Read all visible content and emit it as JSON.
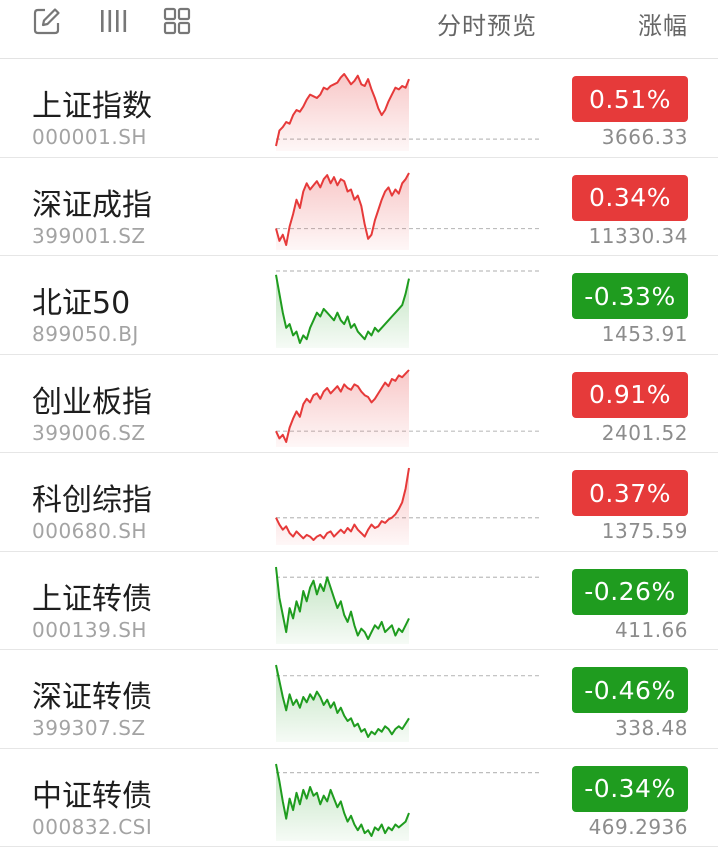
{
  "header": {
    "edit_icon": "edit-icon",
    "columns_icon": "column-view-icon",
    "grid_icon": "grid-view-icon",
    "preview_label": "分时预览",
    "change_label": "涨幅"
  },
  "colors": {
    "up": "#e63a3a",
    "down": "#1f9c1f",
    "baseline": "#bdbdbd"
  },
  "rows": [
    {
      "name": "上证指数",
      "code": "000001.SH",
      "change": "0.51%",
      "price": "3666.33",
      "trend": "up",
      "intraday": [
        -0.2,
        0.25,
        0.35,
        0.5,
        0.45,
        0.7,
        0.85,
        0.8,
        0.95,
        1.15,
        1.3,
        1.25,
        1.2,
        1.3,
        1.5,
        1.45,
        1.55,
        1.6,
        1.65,
        1.8,
        1.9,
        1.75,
        1.6,
        1.7,
        1.85,
        1.6,
        1.55,
        1.75,
        1.45,
        1.2,
        0.9,
        0.7,
        0.85,
        1.1,
        1.3,
        1.5,
        1.45,
        1.55,
        1.5,
        1.75
      ]
    },
    {
      "name": "深证成指",
      "code": "399001.SZ",
      "change": "0.34%",
      "price": "11330.34",
      "trend": "up",
      "intraday": [
        0.0,
        -0.3,
        -0.15,
        -0.4,
        0.05,
        0.35,
        0.7,
        0.5,
        0.9,
        1.1,
        0.95,
        1.05,
        1.15,
        1.0,
        1.2,
        1.3,
        1.1,
        1.25,
        1.05,
        1.2,
        1.15,
        0.9,
        0.95,
        0.7,
        0.8,
        0.55,
        0.1,
        -0.25,
        -0.15,
        0.2,
        0.45,
        0.7,
        0.9,
        1.0,
        0.8,
        0.95,
        0.85,
        1.1,
        1.2,
        1.35
      ]
    },
    {
      "name": "北证50",
      "code": "899050.BJ",
      "change": "-0.33%",
      "price": "1453.91",
      "trend": "down",
      "intraday": [
        -0.05,
        -0.3,
        -0.55,
        -0.75,
        -0.7,
        -0.85,
        -0.8,
        -0.95,
        -0.85,
        -0.9,
        -0.75,
        -0.65,
        -0.55,
        -0.6,
        -0.5,
        -0.55,
        -0.6,
        -0.65,
        -0.55,
        -0.65,
        -0.7,
        -0.6,
        -0.75,
        -0.7,
        -0.8,
        -0.85,
        -0.9,
        -0.8,
        -0.85,
        -0.75,
        -0.8,
        -0.75,
        -0.7,
        -0.65,
        -0.6,
        -0.55,
        -0.5,
        -0.45,
        -0.3,
        -0.1
      ]
    },
    {
      "name": "创业板指",
      "code": "399006.SZ",
      "change": "0.91%",
      "price": "2401.52",
      "trend": "up",
      "intraday": [
        0.0,
        -0.2,
        -0.1,
        -0.3,
        0.1,
        0.35,
        0.55,
        0.4,
        0.75,
        0.9,
        0.8,
        1.0,
        1.05,
        0.9,
        1.1,
        1.2,
        1.05,
        1.15,
        1.25,
        1.1,
        1.3,
        1.2,
        1.15,
        1.3,
        1.25,
        1.1,
        1.0,
        0.95,
        0.8,
        0.9,
        1.05,
        1.2,
        1.35,
        1.25,
        1.45,
        1.4,
        1.55,
        1.5,
        1.6,
        1.7
      ]
    },
    {
      "name": "科创综指",
      "code": "000680.SH",
      "change": "0.37%",
      "price": "1375.59",
      "trend": "up",
      "intraday": [
        0.0,
        -0.2,
        -0.35,
        -0.25,
        -0.45,
        -0.55,
        -0.4,
        -0.5,
        -0.6,
        -0.5,
        -0.55,
        -0.65,
        -0.55,
        -0.5,
        -0.6,
        -0.45,
        -0.4,
        -0.55,
        -0.45,
        -0.35,
        -0.45,
        -0.3,
        -0.4,
        -0.2,
        -0.35,
        -0.45,
        -0.55,
        -0.35,
        -0.2,
        -0.3,
        -0.25,
        -0.1,
        -0.15,
        -0.05,
        0.0,
        0.1,
        0.25,
        0.45,
        0.85,
        1.45
      ]
    },
    {
      "name": "上证转债",
      "code": "000139.SH",
      "change": "-0.26%",
      "price": "411.66",
      "trend": "down",
      "intraday": [
        0.15,
        -0.3,
        -0.55,
        -0.8,
        -0.45,
        -0.6,
        -0.35,
        -0.5,
        -0.2,
        -0.35,
        -0.15,
        -0.05,
        -0.25,
        -0.1,
        -0.2,
        0.0,
        -0.15,
        -0.3,
        -0.45,
        -0.35,
        -0.55,
        -0.65,
        -0.5,
        -0.7,
        -0.85,
        -0.75,
        -0.8,
        -0.9,
        -0.8,
        -0.7,
        -0.75,
        -0.65,
        -0.8,
        -0.75,
        -0.7,
        -0.85,
        -0.75,
        -0.8,
        -0.7,
        -0.6
      ]
    },
    {
      "name": "深证转债",
      "code": "399307.SZ",
      "change": "-0.46%",
      "price": "338.48",
      "trend": "down",
      "intraday": [
        0.2,
        -0.1,
        -0.4,
        -0.65,
        -0.35,
        -0.55,
        -0.45,
        -0.6,
        -0.4,
        -0.5,
        -0.35,
        -0.45,
        -0.3,
        -0.4,
        -0.55,
        -0.45,
        -0.6,
        -0.5,
        -0.7,
        -0.6,
        -0.75,
        -0.85,
        -0.8,
        -0.95,
        -0.9,
        -1.05,
        -1.0,
        -1.15,
        -1.05,
        -1.1,
        -1.0,
        -1.05,
        -0.95,
        -1.0,
        -1.1,
        -1.0,
        -0.95,
        -1.0,
        -0.9,
        -0.8
      ]
    },
    {
      "name": "中证转债",
      "code": "000832.CSI",
      "change": "-0.34%",
      "price": "469.2936",
      "trend": "down",
      "intraday": [
        0.15,
        -0.15,
        -0.5,
        -0.8,
        -0.45,
        -0.65,
        -0.35,
        -0.55,
        -0.3,
        -0.45,
        -0.25,
        -0.4,
        -0.35,
        -0.55,
        -0.4,
        -0.5,
        -0.3,
        -0.45,
        -0.6,
        -0.5,
        -0.7,
        -0.85,
        -0.75,
        -0.9,
        -1.0,
        -0.9,
        -1.05,
        -1.0,
        -1.1,
        -0.95,
        -1.0,
        -0.9,
        -1.05,
        -0.95,
        -1.0,
        -0.9,
        -0.95,
        -0.9,
        -0.85,
        -0.7
      ]
    }
  ]
}
